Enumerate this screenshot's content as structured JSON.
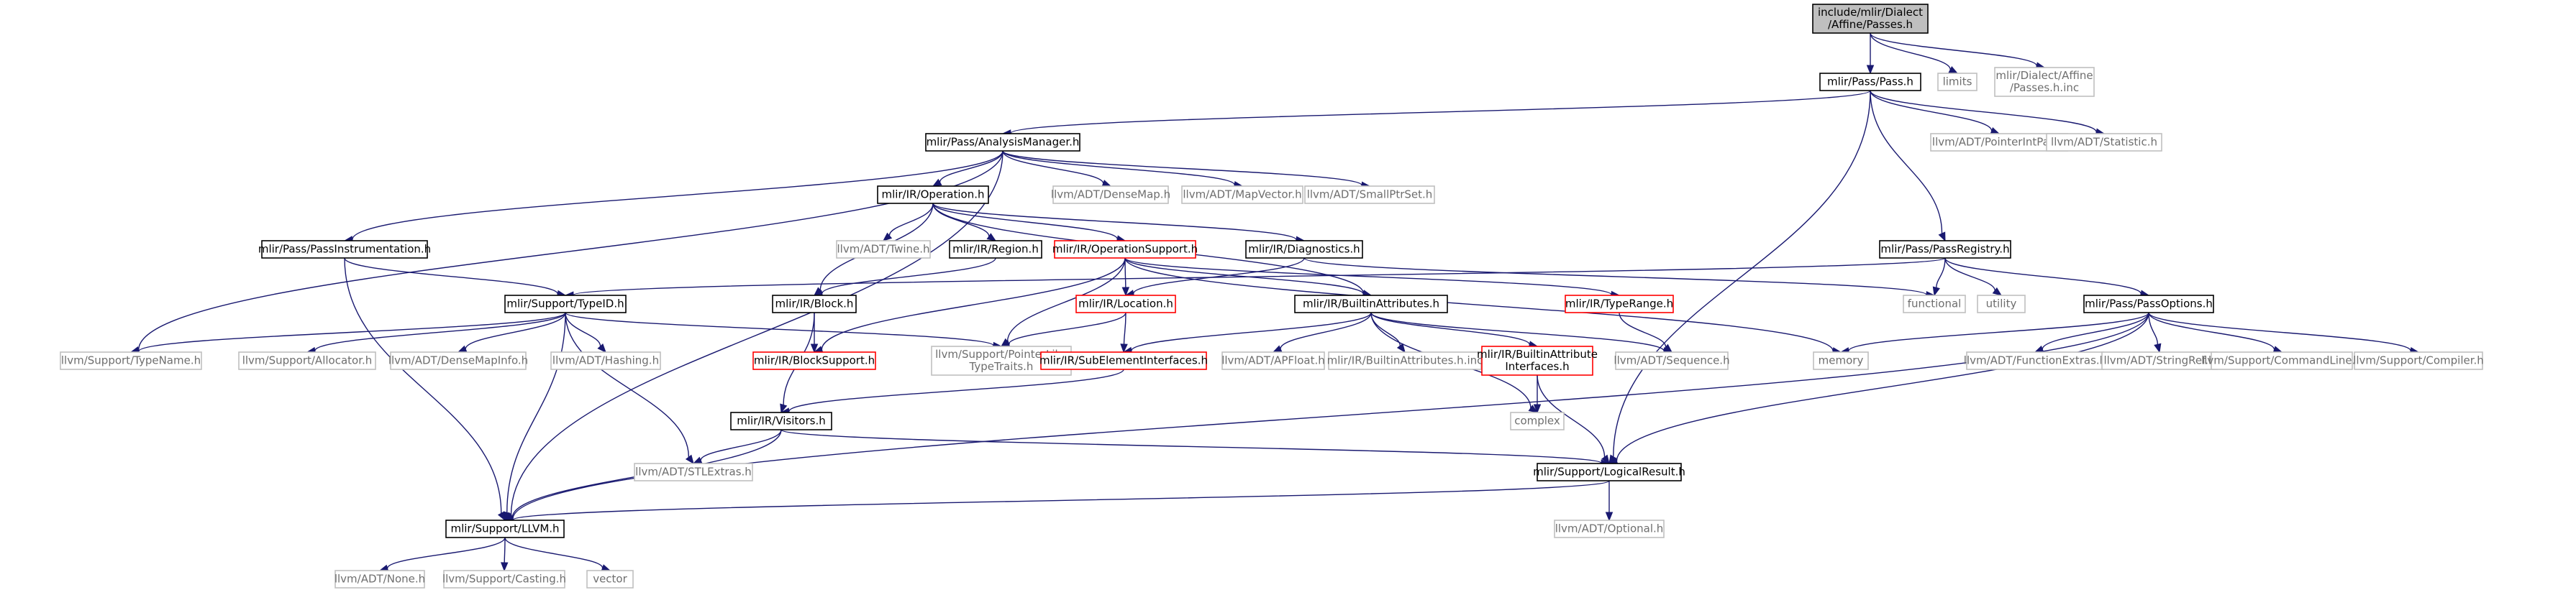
{
  "diagram": {
    "root": "include/mlir/Dialect/Affine/Passes.h",
    "colors": {
      "edge": "#191970",
      "root_fill": "#bfbfbf",
      "root_border": "#000000",
      "documented_border": "#000000",
      "undocumented_border": "#ff0000",
      "external_border": "#bfbfbf",
      "external_text": "#6e6e6e",
      "text": "#000000"
    },
    "nodes": [
      {
        "id": "root",
        "lines": [
          "include/mlir/Dialect",
          "/Affine/Passes.h"
        ],
        "style": "root"
      },
      {
        "id": "pass",
        "lines": [
          "mlir/Pass/Pass.h"
        ],
        "style": "doc"
      },
      {
        "id": "limits",
        "lines": [
          "limits"
        ],
        "style": "ext"
      },
      {
        "id": "passesinc",
        "lines": [
          "mlir/Dialect/Affine",
          "/Passes.h.inc"
        ],
        "style": "ext"
      },
      {
        "id": "am",
        "lines": [
          "mlir/Pass/AnalysisManager.h"
        ],
        "style": "doc"
      },
      {
        "id": "pip",
        "lines": [
          "llvm/ADT/PointerIntPair.h"
        ],
        "style": "ext"
      },
      {
        "id": "stat",
        "lines": [
          "llvm/ADT/Statistic.h"
        ],
        "style": "ext"
      },
      {
        "id": "op",
        "lines": [
          "mlir/IR/Operation.h"
        ],
        "style": "doc"
      },
      {
        "id": "densemap",
        "lines": [
          "llvm/ADT/DenseMap.h"
        ],
        "style": "ext"
      },
      {
        "id": "mapvec",
        "lines": [
          "llvm/ADT/MapVector.h"
        ],
        "style": "ext"
      },
      {
        "id": "sps",
        "lines": [
          "llvm/ADT/SmallPtrSet.h"
        ],
        "style": "ext"
      },
      {
        "id": "pi",
        "lines": [
          "mlir/Pass/PassInstrumentation.h"
        ],
        "style": "doc"
      },
      {
        "id": "twine",
        "lines": [
          "llvm/ADT/Twine.h"
        ],
        "style": "ext"
      },
      {
        "id": "region",
        "lines": [
          "mlir/IR/Region.h"
        ],
        "style": "doc"
      },
      {
        "id": "opsupport",
        "lines": [
          "mlir/IR/OperationSupport.h"
        ],
        "style": "undoc"
      },
      {
        "id": "diag",
        "lines": [
          "mlir/IR/Diagnostics.h"
        ],
        "style": "doc"
      },
      {
        "id": "registry",
        "lines": [
          "mlir/Pass/PassRegistry.h"
        ],
        "style": "doc"
      },
      {
        "id": "typeid",
        "lines": [
          "mlir/Support/TypeID.h"
        ],
        "style": "doc"
      },
      {
        "id": "block",
        "lines": [
          "mlir/IR/Block.h"
        ],
        "style": "doc"
      },
      {
        "id": "location",
        "lines": [
          "mlir/IR/Location.h"
        ],
        "style": "undoc"
      },
      {
        "id": "builtinattr",
        "lines": [
          "mlir/IR/BuiltinAttributes.h"
        ],
        "style": "doc"
      },
      {
        "id": "typerange",
        "lines": [
          "mlir/IR/TypeRange.h"
        ],
        "style": "undoc"
      },
      {
        "id": "functional",
        "lines": [
          "functional"
        ],
        "style": "ext"
      },
      {
        "id": "utility",
        "lines": [
          "utility"
        ],
        "style": "ext"
      },
      {
        "id": "passoptions",
        "lines": [
          "mlir/Pass/PassOptions.h"
        ],
        "style": "doc"
      },
      {
        "id": "typename",
        "lines": [
          "llvm/Support/TypeName.h"
        ],
        "style": "ext"
      },
      {
        "id": "allocator",
        "lines": [
          "llvm/Support/Allocator.h"
        ],
        "style": "ext"
      },
      {
        "id": "densemapinfo",
        "lines": [
          "llvm/ADT/DenseMapInfo.h"
        ],
        "style": "ext"
      },
      {
        "id": "hashing",
        "lines": [
          "llvm/ADT/Hashing.h"
        ],
        "style": "ext"
      },
      {
        "id": "blocksupport",
        "lines": [
          "mlir/IR/BlockSupport.h"
        ],
        "style": "undoc"
      },
      {
        "id": "pointerlike",
        "lines": [
          "llvm/Support/PointerLike",
          "TypeTraits.h"
        ],
        "style": "ext"
      },
      {
        "id": "subelem",
        "lines": [
          "mlir/IR/SubElementInterfaces.h"
        ],
        "style": "undoc"
      },
      {
        "id": "apfloat",
        "lines": [
          "llvm/ADT/APFloat.h"
        ],
        "style": "ext"
      },
      {
        "id": "battrinc",
        "lines": [
          "mlir/IR/BuiltinAttributes.h.inc"
        ],
        "style": "ext"
      },
      {
        "id": "battrif",
        "lines": [
          "mlir/IR/BuiltinAttribute",
          "Interfaces.h"
        ],
        "style": "undoc"
      },
      {
        "id": "sequence",
        "lines": [
          "llvm/ADT/Sequence.h"
        ],
        "style": "ext"
      },
      {
        "id": "memory",
        "lines": [
          "memory"
        ],
        "style": "ext"
      },
      {
        "id": "funcextras",
        "lines": [
          "llvm/ADT/FunctionExtras.h"
        ],
        "style": "ext"
      },
      {
        "id": "stringref",
        "lines": [
          "llvm/ADT/StringRef.h"
        ],
        "style": "ext"
      },
      {
        "id": "cmdline",
        "lines": [
          "llvm/Support/CommandLine.h"
        ],
        "style": "ext"
      },
      {
        "id": "compiler",
        "lines": [
          "llvm/Support/Compiler.h"
        ],
        "style": "ext"
      },
      {
        "id": "visitors",
        "lines": [
          "mlir/IR/Visitors.h"
        ],
        "style": "doc"
      },
      {
        "id": "complex",
        "lines": [
          "complex"
        ],
        "style": "ext"
      },
      {
        "id": "stlextras",
        "lines": [
          "llvm/ADT/STLExtras.h"
        ],
        "style": "ext"
      },
      {
        "id": "logical",
        "lines": [
          "mlir/Support/LogicalResult.h"
        ],
        "style": "doc"
      },
      {
        "id": "llvmh",
        "lines": [
          "mlir/Support/LLVM.h"
        ],
        "style": "doc"
      },
      {
        "id": "optional",
        "lines": [
          "llvm/ADT/Optional.h"
        ],
        "style": "ext"
      },
      {
        "id": "none",
        "lines": [
          "llvm/ADT/None.h"
        ],
        "style": "ext"
      },
      {
        "id": "casting",
        "lines": [
          "llvm/Support/Casting.h"
        ],
        "style": "ext"
      },
      {
        "id": "vector",
        "lines": [
          "vector"
        ],
        "style": "ext"
      }
    ],
    "edges": [
      [
        "root",
        "pass"
      ],
      [
        "root",
        "limits"
      ],
      [
        "root",
        "passesinc"
      ],
      [
        "pass",
        "am"
      ],
      [
        "pass",
        "pip"
      ],
      [
        "pass",
        "stat"
      ],
      [
        "pass",
        "registry"
      ],
      [
        "pass",
        "logical"
      ],
      [
        "am",
        "op"
      ],
      [
        "am",
        "densemap"
      ],
      [
        "am",
        "mapvec"
      ],
      [
        "am",
        "sps"
      ],
      [
        "am",
        "pi"
      ],
      [
        "am",
        "typename"
      ],
      [
        "am",
        "llvmh"
      ],
      [
        "op",
        "twine"
      ],
      [
        "op",
        "region"
      ],
      [
        "op",
        "opsupport"
      ],
      [
        "op",
        "diag"
      ],
      [
        "op",
        "block"
      ],
      [
        "op",
        "builtinattr"
      ],
      [
        "pi",
        "typeid"
      ],
      [
        "pi",
        "llvmh"
      ],
      [
        "region",
        "block"
      ],
      [
        "opsupport",
        "location"
      ],
      [
        "opsupport",
        "builtinattr"
      ],
      [
        "opsupport",
        "typerange"
      ],
      [
        "opsupport",
        "blocksupport"
      ],
      [
        "opsupport",
        "pointerlike"
      ],
      [
        "opsupport",
        "memory"
      ],
      [
        "diag",
        "location"
      ],
      [
        "diag",
        "functional"
      ],
      [
        "registry",
        "typeid"
      ],
      [
        "registry",
        "functional"
      ],
      [
        "registry",
        "utility"
      ],
      [
        "registry",
        "passoptions"
      ],
      [
        "typeid",
        "typename"
      ],
      [
        "typeid",
        "allocator"
      ],
      [
        "typeid",
        "densemapinfo"
      ],
      [
        "typeid",
        "hashing"
      ],
      [
        "typeid",
        "pointerlike"
      ],
      [
        "typeid",
        "stlextras"
      ],
      [
        "typeid",
        "llvmh"
      ],
      [
        "block",
        "blocksupport"
      ],
      [
        "block",
        "visitors"
      ],
      [
        "location",
        "pointerlike"
      ],
      [
        "location",
        "subelem"
      ],
      [
        "builtinattr",
        "subelem"
      ],
      [
        "builtinattr",
        "apfloat"
      ],
      [
        "builtinattr",
        "battrinc"
      ],
      [
        "builtinattr",
        "battrif"
      ],
      [
        "builtinattr",
        "sequence"
      ],
      [
        "builtinattr",
        "complex"
      ],
      [
        "typerange",
        "sequence"
      ],
      [
        "passoptions",
        "memory"
      ],
      [
        "passoptions",
        "funcextras"
      ],
      [
        "passoptions",
        "stringref"
      ],
      [
        "passoptions",
        "cmdline"
      ],
      [
        "passoptions",
        "compiler"
      ],
      [
        "passoptions",
        "logical"
      ],
      [
        "passoptions",
        "llvmh"
      ],
      [
        "subelem",
        "visitors"
      ],
      [
        "battrif",
        "complex"
      ],
      [
        "battrif",
        "logical"
      ],
      [
        "visitors",
        "stlextras"
      ],
      [
        "visitors",
        "llvmh"
      ],
      [
        "visitors",
        "logical"
      ],
      [
        "logical",
        "llvmh"
      ],
      [
        "logical",
        "optional"
      ],
      [
        "llvmh",
        "none"
      ],
      [
        "llvmh",
        "casting"
      ],
      [
        "llvmh",
        "vector"
      ]
    ]
  }
}
